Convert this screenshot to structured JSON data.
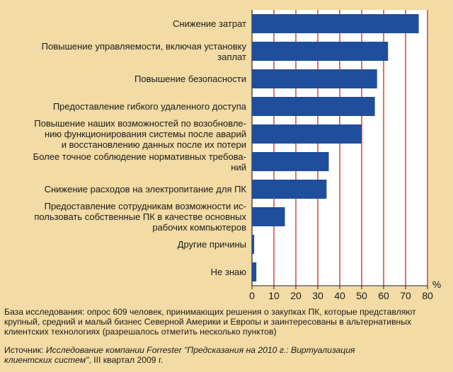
{
  "chart_data": {
    "type": "bar",
    "orientation": "horizontal",
    "categories": [
      "Снижение затрат",
      "Повышение управляемости, включая установку\nзаплат",
      "Повышение безопасности",
      "Предоставление гибкого удаленного доступа",
      "Повышение наших возможностей по возобновле-\nнию функционирования системы после аварий\nи восстановлению данных после их потери",
      "Более точное соблюдение нормативных  требова-\nний",
      "Снижение расходов на электропитание для ПК",
      "Предоставление сотрудникам возможности ис-\nпользовать собственные ПК в качестве основных\nрабочих компьютеров",
      "Другие причины",
      "Не знаю"
    ],
    "values": [
      76,
      62,
      57,
      56,
      50,
      35,
      34,
      15,
      1,
      2
    ],
    "xlim": [
      0,
      80
    ],
    "xticks": [
      "0",
      "10",
      "20",
      "30",
      "40",
      "50",
      "60",
      "70",
      "80"
    ],
    "x_unit": "%",
    "grid": "vertical",
    "bar_color": "#1f4e9c",
    "grid_color": "#cc2a1e",
    "plot_bg": "#ffffff"
  },
  "notes": {
    "base": "База исследования: опрос 609 человек, принимающих решения о закупках ПК, которые представляют крупный, средний и малый бизнес Северной Америки и Европы и заинтересованы в альтернативных клиентских технологиях (разрешалось отметить несколько пунктов)",
    "source_prefix": "Источник: ",
    "source_title": "Исследование компании Forrester \"Предсказания на 2010 г.: Виртуализация клиентских систем\"",
    "source_suffix": ", III квартал 2009 г."
  }
}
